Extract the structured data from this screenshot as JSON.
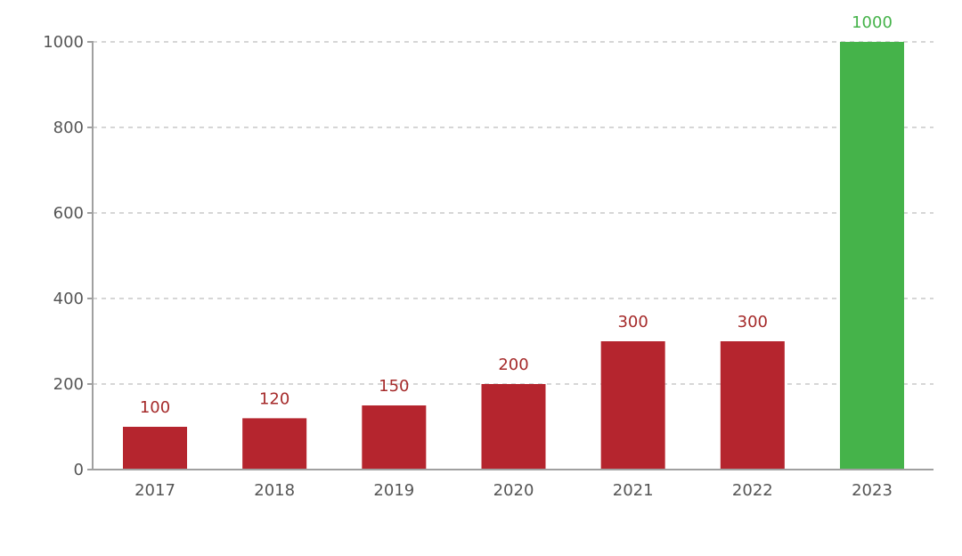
{
  "chart_data": {
    "type": "bar",
    "categories": [
      "2017",
      "2018",
      "2019",
      "2020",
      "2021",
      "2022",
      "2023"
    ],
    "values": [
      100,
      120,
      150,
      200,
      300,
      300,
      1000
    ],
    "data_labels": [
      "100",
      "120",
      "150",
      "200",
      "300",
      "300",
      "1000"
    ],
    "ylim": [
      0,
      1000
    ],
    "yticks": [
      0,
      200,
      400,
      600,
      800,
      1000
    ],
    "ytick_labels": [
      "0",
      "200",
      "400",
      "600",
      "800",
      "1000"
    ],
    "grid": true,
    "colors": {
      "default_bar": "#b5252e",
      "highlight_bar": "#45b34a",
      "default_label": "#a52a2a",
      "highlight_label": "#45b34a"
    },
    "highlight_index": 6
  }
}
